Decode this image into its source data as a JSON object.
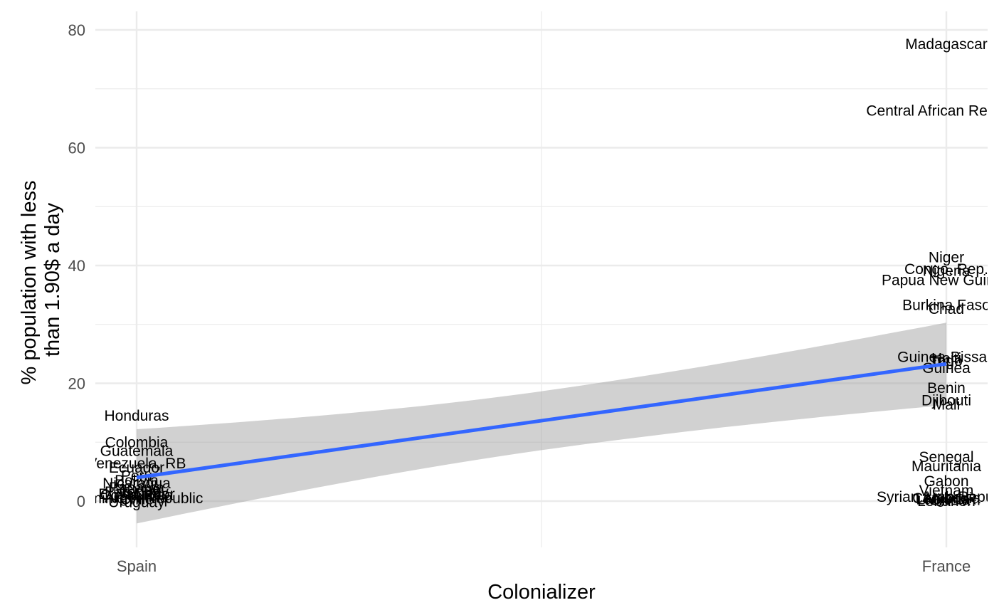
{
  "chart_data": {
    "type": "scatter",
    "xlabel": "Colonializer",
    "ylabel_lines": [
      "% population with less",
      "than 1.90$ a day"
    ],
    "categories": [
      "Spain",
      "France"
    ],
    "ylim": [
      -8,
      83
    ],
    "yticks": [
      0,
      20,
      40,
      60,
      80
    ],
    "grid": true,
    "colors": {
      "fit_line": "#3366FF",
      "ribbon": "#999999",
      "grid": "#ebebeb",
      "label_text": "#000000",
      "tick_text": "#4d4d4d"
    },
    "fit": {
      "method": "linear",
      "x": [
        "Spain",
        "France"
      ],
      "y": [
        4.0,
        23.3
      ],
      "ci_lower": [
        -3.8,
        16.3
      ],
      "ci_upper": [
        12.2,
        30.3
      ]
    },
    "labels": [
      {
        "text": "Honduras",
        "x": "Spain",
        "y": 14.5
      },
      {
        "text": "Colombia",
        "x": "Spain",
        "y": 10.0
      },
      {
        "text": "Guatemala",
        "x": "Spain",
        "y": 8.5
      },
      {
        "text": "Venezuela, RB",
        "x": "Spain",
        "y": 6.4
      },
      {
        "text": "Ecuador",
        "x": "Spain",
        "y": 5.7
      },
      {
        "text": "Peru",
        "x": "Spain",
        "y": 4.3
      },
      {
        "text": "Bolivia",
        "x": "Spain",
        "y": 3.5
      },
      {
        "text": "Nicaragua",
        "x": "Spain",
        "y": 3.0
      },
      {
        "text": "Panama",
        "x": "Spain",
        "y": 2.3
      },
      {
        "text": "Mexico",
        "x": "Spain",
        "y": 2.0
      },
      {
        "text": "Paraguay",
        "x": "Spain",
        "y": 1.6
      },
      {
        "text": "El Salvador",
        "x": "Spain",
        "y": 1.2
      },
      {
        "text": "Costa Rica",
        "x": "Spain",
        "y": 1.0
      },
      {
        "text": "Argentina",
        "x": "Spain",
        "y": 0.6
      },
      {
        "text": "Chile",
        "x": "Spain",
        "y": 0.3
      },
      {
        "text": "Dominican Republic",
        "x": "Spain",
        "y": 0.5
      },
      {
        "text": "Uruguay",
        "x": "Spain",
        "y": -0.2
      },
      {
        "text": "Madagascar",
        "x": "France",
        "y": 77.6
      },
      {
        "text": "Central African Republic",
        "x": "France",
        "y": 66.3
      },
      {
        "text": "Niger",
        "x": "France",
        "y": 41.4
      },
      {
        "text": "Congo, Rep.",
        "x": "France",
        "y": 39.4
      },
      {
        "text": "Nigeria",
        "x": "France",
        "y": 39.1
      },
      {
        "text": "Papua New Guinea",
        "x": "France",
        "y": 37.5
      },
      {
        "text": "Burkina Faso",
        "x": "France",
        "y": 33.3
      },
      {
        "text": "Chad",
        "x": "France",
        "y": 32.6
      },
      {
        "text": "Guinea-Bissau",
        "x": "France",
        "y": 24.5
      },
      {
        "text": "Haiti",
        "x": "France",
        "y": 24.2
      },
      {
        "text": "Togo",
        "x": "France",
        "y": 23.8
      },
      {
        "text": "Guinea",
        "x": "France",
        "y": 22.6
      },
      {
        "text": "Benin",
        "x": "France",
        "y": 19.2
      },
      {
        "text": "Djibouti",
        "x": "France",
        "y": 17.1
      },
      {
        "text": "Mali",
        "x": "France",
        "y": 16.4
      },
      {
        "text": "Senegal",
        "x": "France",
        "y": 7.5
      },
      {
        "text": "Mauritania",
        "x": "France",
        "y": 5.9
      },
      {
        "text": "Gabon",
        "x": "France",
        "y": 3.4
      },
      {
        "text": "Vietnam",
        "x": "France",
        "y": 1.8
      },
      {
        "text": "Syrian Arab Republic",
        "x": "France",
        "y": 0.7
      },
      {
        "text": "Cambodia",
        "x": "France",
        "y": 0.5
      },
      {
        "text": "Lao PDR",
        "x": "France",
        "y": 0.3
      },
      {
        "text": "Tunisia",
        "x": "France",
        "y": 0.2
      },
      {
        "text": "Algeria",
        "x": "France",
        "y": 0.4
      },
      {
        "text": "Lebanon",
        "x": "France",
        "y": 0.0
      }
    ]
  }
}
